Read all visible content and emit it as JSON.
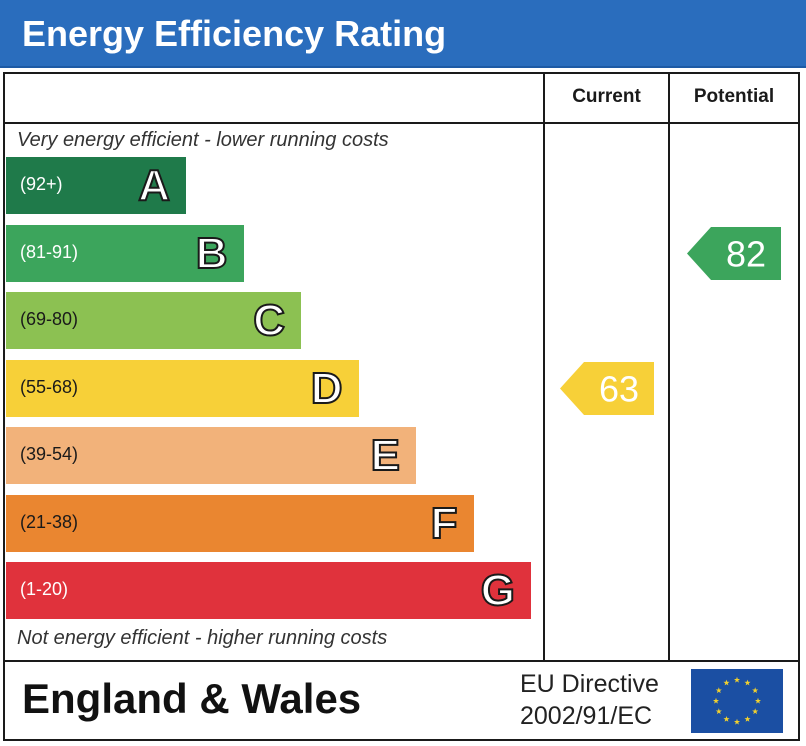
{
  "title": "Energy Efficiency Rating",
  "columns": {
    "current": "Current",
    "potential": "Potential"
  },
  "captions": {
    "top": "Very energy efficient - lower running costs",
    "bottom": "Not energy efficient - higher running costs"
  },
  "chart_data": {
    "type": "bar",
    "bands": [
      {
        "letter": "A",
        "range": "(92+)",
        "color": "#1f7a4a",
        "text_color": "#ffffff"
      },
      {
        "letter": "B",
        "range": "(81-91)",
        "color": "#3ca55c",
        "text_color": "#ffffff"
      },
      {
        "letter": "C",
        "range": "(69-80)",
        "color": "#8cc152",
        "text_color": "#1a1a1a"
      },
      {
        "letter": "D",
        "range": "(55-68)",
        "color": "#f7d038",
        "text_color": "#1a1a1a"
      },
      {
        "letter": "E",
        "range": "(39-54)",
        "color": "#f2b27a",
        "text_color": "#1a1a1a"
      },
      {
        "letter": "F",
        "range": "(21-38)",
        "color": "#ea8630",
        "text_color": "#1a1a1a"
      },
      {
        "letter": "G",
        "range": "(1-20)",
        "color": "#e0323c",
        "text_color": "#ffffff"
      }
    ],
    "current": {
      "value": "63",
      "band": "D",
      "color": "#f7d038"
    },
    "potential": {
      "value": "82",
      "band": "B",
      "color": "#3ca55c"
    }
  },
  "footer": {
    "region": "England & Wales",
    "directive_line1": "EU Directive",
    "directive_line2": "2002/91/EC"
  },
  "flag": {
    "background": "#1b4fa3",
    "stars": "#f2d12e"
  }
}
